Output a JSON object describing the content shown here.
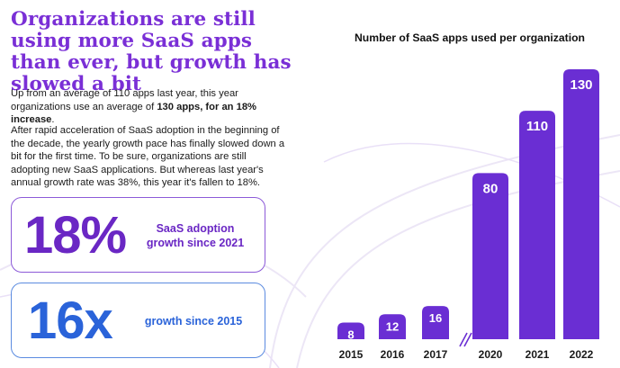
{
  "headline": "Organizations are still using more SaaS apps than ever, but growth has slowed a bit",
  "paragraph1": {
    "text_before": "Up from an average of 110 apps last year, this year organizations use an average of ",
    "bold": "130 apps, for an 18% increase",
    "text_after": "."
  },
  "paragraph2": "After rapid acceleration of SaaS adoption in the beginning of the decade, the yearly growth pace has finally slowed down a bit for the first time. To be sure, organizations are still adopting new SaaS applications. But whereas last year's annual growth rate was 38%, this year it's fallen to 18%.",
  "stat_cards": [
    {
      "value": "18%",
      "label": "SaaS adoption growth since 2021",
      "color": "#6a27c4"
    },
    {
      "value": "16x",
      "label": "growth since 2015",
      "color": "#2a63d9"
    }
  ],
  "colors": {
    "bar": "#6a2ed3",
    "accent_purple": "#7a2fd6",
    "accent_blue": "#2a63d9"
  },
  "chart_data": {
    "type": "bar",
    "title": "Number of SaaS apps used per organization",
    "categories": [
      "2015",
      "2016",
      "2017",
      "2020",
      "2021",
      "2022"
    ],
    "values": [
      8,
      12,
      16,
      80,
      110,
      130
    ],
    "axis_break_between": [
      "2017",
      "2020"
    ],
    "xlabel": "",
    "ylabel": "",
    "ylim": [
      0,
      130
    ],
    "grid": false,
    "legend": "none",
    "data_labels": true
  }
}
